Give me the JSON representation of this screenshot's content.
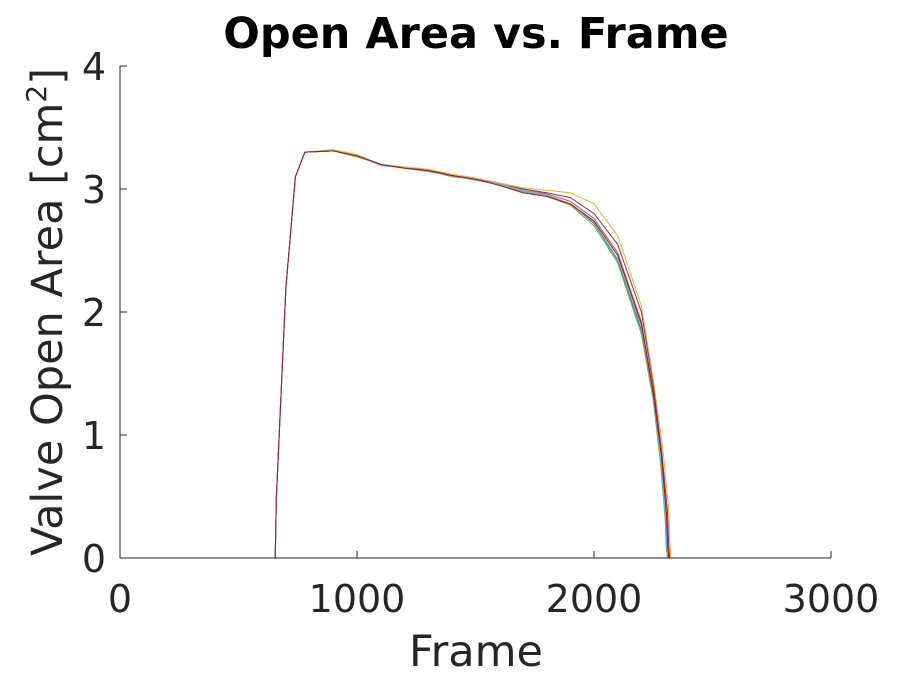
{
  "chart_data": {
    "type": "line",
    "title": "Open Area vs. Frame",
    "xlabel": "Frame",
    "ylabel": "Valve Open Area [cm",
    "ylabel_superscript": "2",
    "ylabel_close": "]",
    "xlim": [
      0,
      3000
    ],
    "ylim": [
      0,
      4
    ],
    "xticks": [
      0,
      1000,
      2000,
      3000
    ],
    "xtick_labels": [
      "0",
      "1000",
      "2000",
      "3000"
    ],
    "yticks": [
      0,
      1,
      2,
      3,
      4
    ],
    "ytick_labels": [
      "0",
      "1",
      "2",
      "3",
      "4"
    ],
    "grid": false,
    "box": false,
    "series": [
      {
        "color": "#0072BD",
        "x": [
          0,
          655,
          660,
          700,
          740,
          780,
          900,
          1000,
          1100,
          1200,
          1300,
          1400,
          1500,
          1600,
          1700,
          1800,
          1900,
          2000,
          2100,
          2200,
          2250,
          2280,
          2300,
          2305,
          2310,
          2500
        ],
        "y": [
          0,
          0,
          0.5,
          2.2,
          3.1,
          3.3,
          3.31,
          3.27,
          3.2,
          3.17,
          3.15,
          3.11,
          3.08,
          3.04,
          2.99,
          2.95,
          2.88,
          2.72,
          2.42,
          1.85,
          1.3,
          0.8,
          0.35,
          0.1,
          0,
          0
        ]
      },
      {
        "color": "#D95319",
        "x": [
          0,
          655,
          660,
          700,
          740,
          780,
          900,
          1000,
          1100,
          1200,
          1300,
          1400,
          1500,
          1600,
          1700,
          1800,
          1900,
          2000,
          2100,
          2200,
          2250,
          2285,
          2305,
          2310,
          2315,
          2500
        ],
        "y": [
          0,
          0,
          0.5,
          2.2,
          3.1,
          3.3,
          3.31,
          3.27,
          3.2,
          3.17,
          3.16,
          3.11,
          3.08,
          3.04,
          3.0,
          2.96,
          2.9,
          2.76,
          2.48,
          1.92,
          1.35,
          0.85,
          0.35,
          0.1,
          0,
          0
        ]
      },
      {
        "color": "#EDB120",
        "x": [
          0,
          655,
          660,
          700,
          740,
          780,
          900,
          1000,
          1100,
          1200,
          1300,
          1400,
          1500,
          1600,
          1700,
          1800,
          1900,
          2000,
          2100,
          2200,
          2250,
          2290,
          2315,
          2320,
          2325,
          2500
        ],
        "y": [
          0,
          0,
          0.5,
          2.2,
          3.1,
          3.3,
          3.32,
          3.28,
          3.2,
          3.18,
          3.16,
          3.12,
          3.09,
          3.05,
          3.01,
          2.99,
          2.97,
          2.88,
          2.62,
          2.05,
          1.45,
          0.9,
          0.4,
          0.12,
          0,
          0
        ]
      },
      {
        "color": "#7E2F8E",
        "x": [
          0,
          655,
          660,
          700,
          740,
          780,
          900,
          1000,
          1100,
          1200,
          1300,
          1400,
          1500,
          1600,
          1700,
          1800,
          1900,
          2000,
          2100,
          2200,
          2250,
          2285,
          2310,
          2315,
          2320,
          2500
        ],
        "y": [
          0,
          0,
          0.5,
          2.2,
          3.1,
          3.3,
          3.31,
          3.27,
          3.2,
          3.17,
          3.15,
          3.11,
          3.08,
          3.04,
          3.0,
          2.97,
          2.93,
          2.8,
          2.55,
          2.0,
          1.4,
          0.88,
          0.38,
          0.1,
          0,
          0
        ]
      },
      {
        "color": "#77AC30",
        "x": [
          0,
          655,
          660,
          700,
          740,
          780,
          900,
          1000,
          1100,
          1200,
          1300,
          1400,
          1500,
          1600,
          1700,
          1800,
          1900,
          2000,
          2100,
          2200,
          2250,
          2280,
          2300,
          2305,
          2310,
          2500
        ],
        "y": [
          0,
          0,
          0.5,
          2.2,
          3.1,
          3.3,
          3.31,
          3.26,
          3.2,
          3.17,
          3.15,
          3.1,
          3.08,
          3.03,
          2.98,
          2.94,
          2.87,
          2.7,
          2.4,
          1.82,
          1.28,
          0.78,
          0.33,
          0.1,
          0,
          0
        ]
      },
      {
        "color": "#4DBEEE",
        "x": [
          0,
          655,
          660,
          700,
          740,
          780,
          900,
          1000,
          1100,
          1200,
          1300,
          1400,
          1500,
          1600,
          1700,
          1800,
          1900,
          2000,
          2100,
          2200,
          2250,
          2282,
          2302,
          2307,
          2312,
          2500
        ],
        "y": [
          0,
          0,
          0.5,
          2.2,
          3.1,
          3.3,
          3.31,
          3.27,
          3.19,
          3.17,
          3.14,
          3.11,
          3.07,
          3.04,
          2.99,
          2.95,
          2.88,
          2.73,
          2.43,
          1.87,
          1.32,
          0.8,
          0.34,
          0.1,
          0,
          0
        ]
      },
      {
        "color": "#A2142F",
        "x": [
          0,
          655,
          660,
          700,
          740,
          780,
          900,
          1000,
          1100,
          1200,
          1300,
          1400,
          1500,
          1600,
          1700,
          1800,
          1900,
          2000,
          2100,
          2200,
          2250,
          2284,
          2306,
          2311,
          2316,
          2500
        ],
        "y": [
          0,
          0,
          0.5,
          2.2,
          3.1,
          3.3,
          3.31,
          3.27,
          3.2,
          3.17,
          3.15,
          3.11,
          3.08,
          3.03,
          2.97,
          2.94,
          2.88,
          2.74,
          2.46,
          1.9,
          1.34,
          0.84,
          0.36,
          0.1,
          0,
          0
        ]
      }
    ]
  }
}
